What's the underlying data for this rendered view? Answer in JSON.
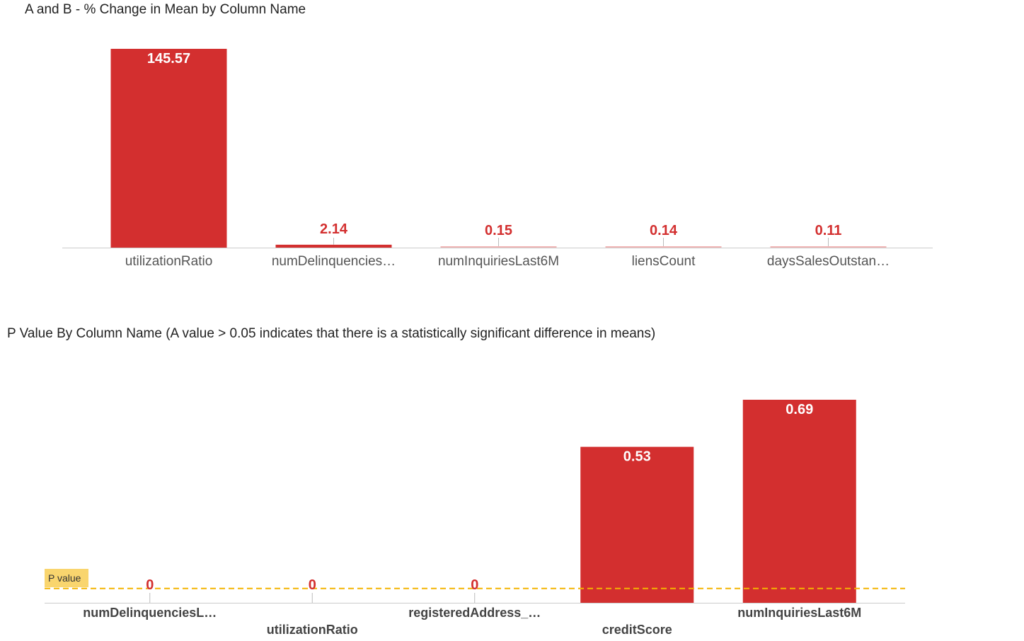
{
  "colors": {
    "bar": "#d32f2f",
    "bar_stub": "#f1b6b6",
    "axis": "#cccccc",
    "tick": "#bbbbbb",
    "label_inside": "#ffffff",
    "label_outside": "#d32f2f",
    "ref_line": "#f4b400",
    "ref_label_bg": "#f9d56e"
  },
  "chart_data": [
    {
      "type": "bar",
      "title": "A and B - % Change in Mean by Column Name",
      "categories": [
        "utilizationRatio",
        "numDelinquencies…",
        "numInquiriesLast6M",
        "liensCount",
        "daysSalesOutstan…"
      ],
      "values": [
        145.57,
        2.14,
        0.15,
        0.14,
        0.11
      ],
      "value_labels": [
        "145.57",
        "2.14",
        "0.15",
        "0.14",
        "0.11"
      ],
      "xlabel": "",
      "ylabel": "",
      "ylim": [
        0,
        145.57
      ],
      "grid": false,
      "legend": "none"
    },
    {
      "type": "bar",
      "title": "P Value By Column Name (A value > 0.05 indicates that there is a statistically significant difference in means)",
      "categories": [
        "numDelinquenciesL…",
        "utilizationRatio",
        "registeredAddress_…",
        "creditScore",
        "numInquiriesLast6M"
      ],
      "values": [
        0,
        0,
        0,
        0.53,
        0.69
      ],
      "value_labels": [
        "0",
        "0",
        "0",
        "0.53",
        "0.69"
      ],
      "xlabel": "",
      "ylabel": "",
      "ylim": [
        0,
        0.69
      ],
      "grid": false,
      "legend": "none",
      "reference_line": {
        "value": 0.05,
        "label": "P value",
        "style": "dashed"
      }
    }
  ]
}
